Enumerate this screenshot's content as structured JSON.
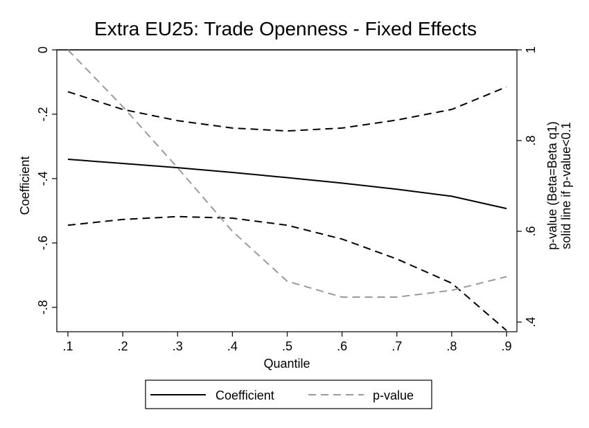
{
  "chart_data": {
    "type": "line",
    "title": "Extra EU25: Trade Openness - Fixed Effects",
    "xlabel": "Quantile",
    "ylabel": "Coefficient",
    "y2label_line1": "p-value (Beta=Beta q1)",
    "y2label_line2": "solid line if p-value<0.1",
    "xlim": [
      0.1,
      0.9
    ],
    "ylim": [
      -0.8759,
      0
    ],
    "y2lim": [
      0.4,
      1.0
    ],
    "x_ticks": [
      0.1,
      0.2,
      0.3,
      0.4,
      0.5,
      0.6,
      0.7,
      0.8,
      0.9
    ],
    "x_tick_labels": [
      ".1",
      ".2",
      ".3",
      ".4",
      ".5",
      ".6",
      ".7",
      ".8",
      ".9"
    ],
    "y_ticks": [
      0,
      -0.2,
      -0.4,
      -0.6,
      -0.8
    ],
    "y_tick_labels": [
      "0",
      "-.2",
      "-.4",
      "-.6",
      "-.8"
    ],
    "y2_ticks": [
      1,
      0.8,
      0.6,
      0.4
    ],
    "y2_tick_labels": [
      "1",
      ".8",
      ".6",
      ".4"
    ],
    "x": [
      0.1,
      0.2,
      0.3,
      0.4,
      0.5,
      0.6,
      0.7,
      0.8,
      0.9
    ],
    "reference_line_y": 0,
    "series": [
      {
        "name": "Coefficient",
        "axis": "left",
        "style": "solid",
        "color": "#000000",
        "values": [
          -0.34,
          -0.353,
          -0.366,
          -0.381,
          -0.397,
          -0.414,
          -0.433,
          -0.455,
          -0.493
        ]
      },
      {
        "axis": "left",
        "style": "dashed",
        "color": "#000000",
        "values": [
          -0.13,
          -0.185,
          -0.22,
          -0.243,
          -0.252,
          -0.243,
          -0.218,
          -0.185,
          -0.115
        ]
      },
      {
        "axis": "left",
        "style": "dashed",
        "color": "#000000",
        "values": [
          -0.545,
          -0.527,
          -0.518,
          -0.523,
          -0.545,
          -0.588,
          -0.65,
          -0.725,
          -0.872
        ]
      },
      {
        "name": "p-value",
        "axis": "right",
        "style": "dashed",
        "color": "#999999",
        "values": [
          1.0,
          0.875,
          0.74,
          0.6,
          0.49,
          0.455,
          0.455,
          0.47,
          0.5
        ]
      }
    ],
    "legend": {
      "position": "bottom",
      "entries": [
        "Coefficient",
        "p-value"
      ]
    }
  }
}
